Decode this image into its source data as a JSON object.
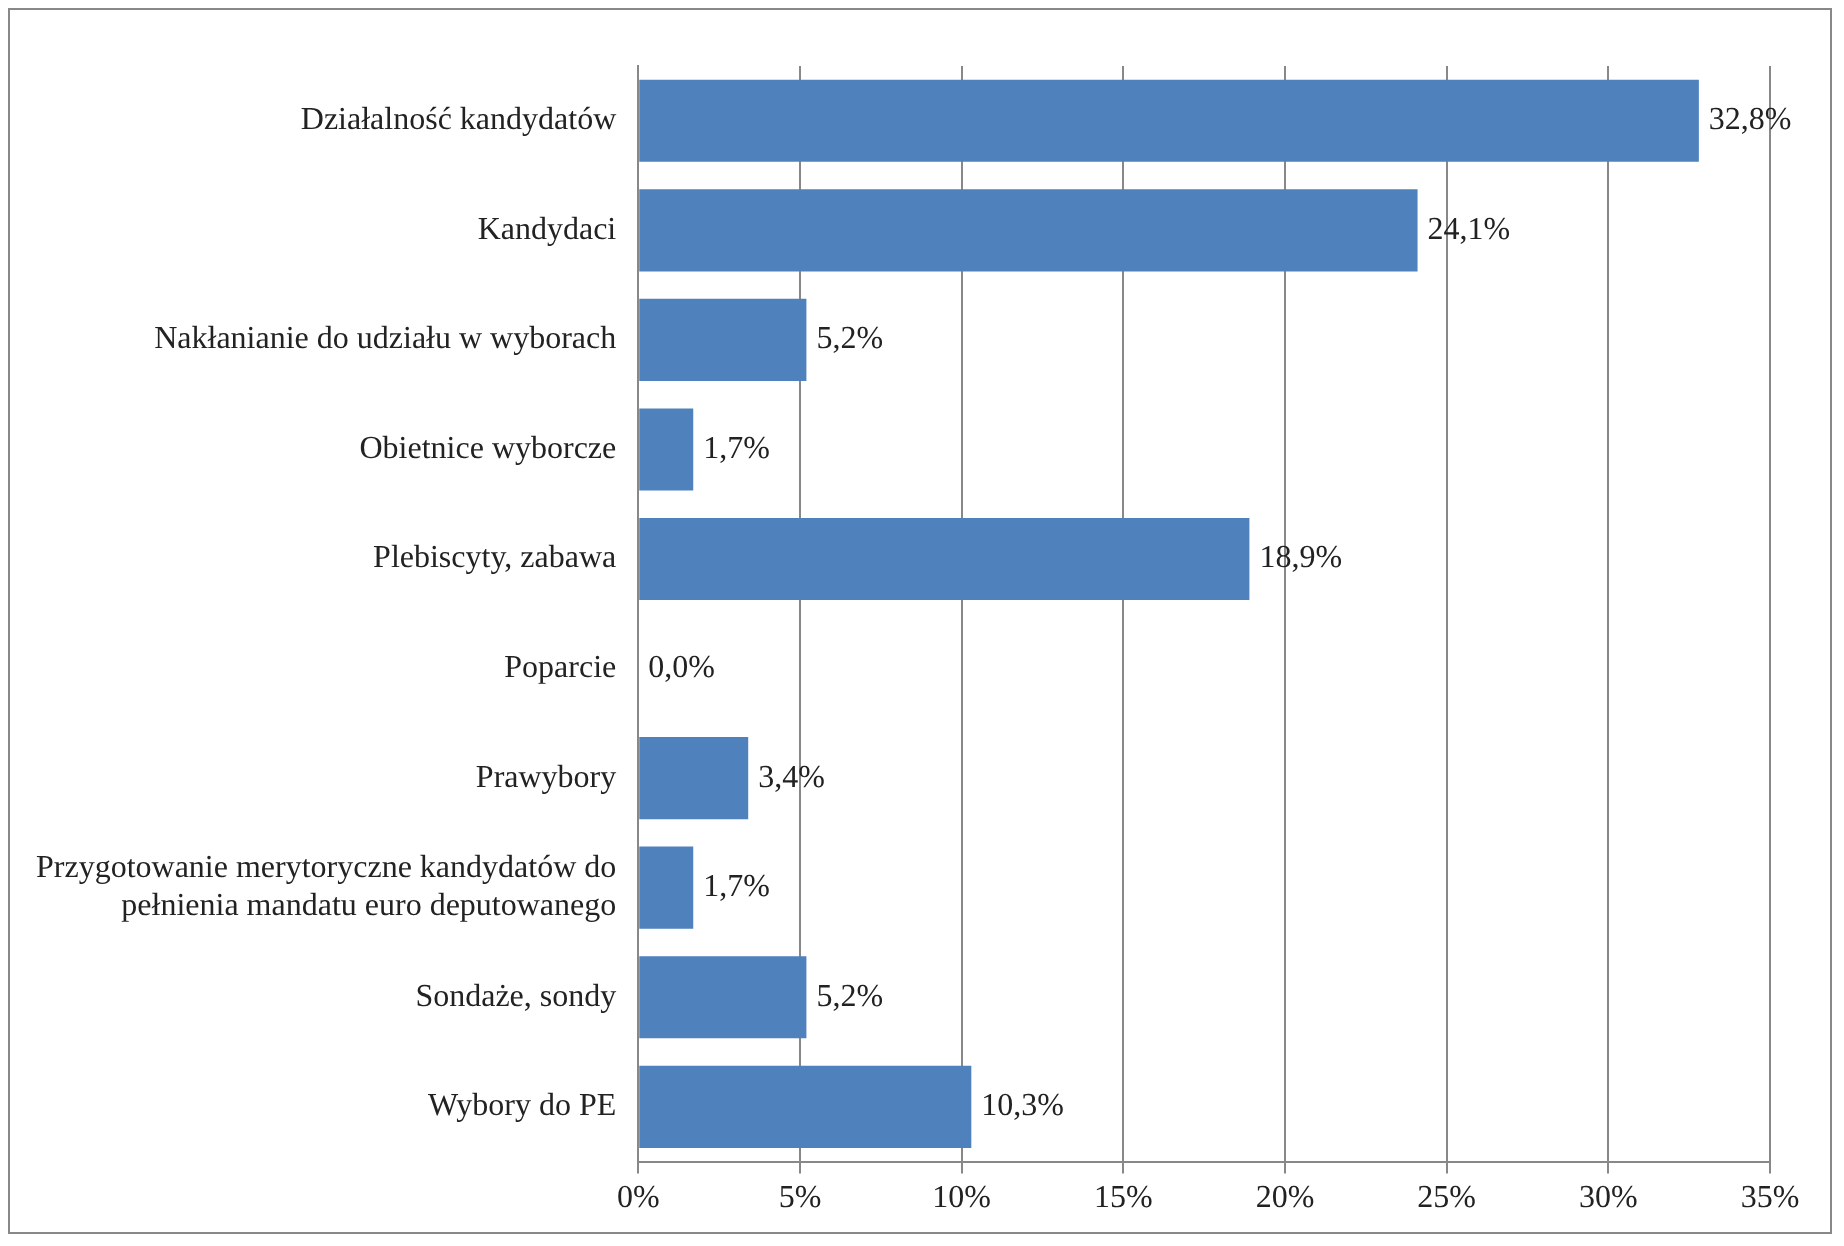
{
  "chart_data": {
    "type": "bar",
    "orientation": "horizontal",
    "categories": [
      "Działalność kandydatów",
      "Kandydaci",
      "Nakłanianie do udziału w wyborach",
      "Obietnice wyborcze",
      "Plebiscyty, zabawa",
      "Poparcie",
      "Prawybory",
      "Przygotowanie merytoryczne kandydatów do pełnienia mandatu euro deputowanego",
      "Sondaże, sondy",
      "Wybory do PE"
    ],
    "values": [
      32.8,
      24.1,
      5.2,
      1.7,
      18.9,
      0.0,
      3.4,
      1.7,
      5.2,
      10.3
    ],
    "value_labels": [
      "32,8%",
      "24,1%",
      "5,2%",
      "1,7%",
      "18,9%",
      "0,0%",
      "3,4%",
      "1,7%",
      "5,2%",
      "10,3%"
    ],
    "color": "#4f81bd",
    "xlim": [
      0,
      35
    ],
    "xticks": [
      {
        "value": 0,
        "label": "0%"
      },
      {
        "value": 5,
        "label": "5%"
      },
      {
        "value": 10,
        "label": "10%"
      },
      {
        "value": 15,
        "label": "15%"
      },
      {
        "value": 20,
        "label": "20%"
      },
      {
        "value": 25,
        "label": "25%"
      },
      {
        "value": 30,
        "label": "30%"
      },
      {
        "value": 35,
        "label": "35%"
      }
    ],
    "grid": "x",
    "legend": false
  }
}
